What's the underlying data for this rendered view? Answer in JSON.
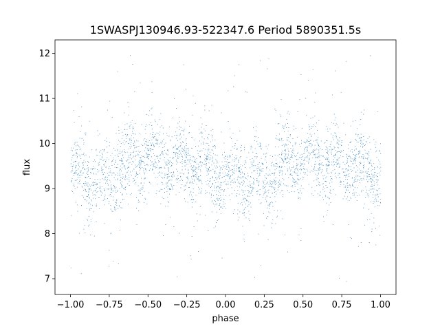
{
  "chart_data": {
    "type": "scatter",
    "title": "1SWASPJ130946.93-522347.6 Period 5890351.5s",
    "xlabel": "phase",
    "ylabel": "flux",
    "xlim": [
      -1.1,
      1.1
    ],
    "ylim": [
      6.65,
      12.3
    ],
    "xticks": [
      -1.0,
      -0.75,
      -0.5,
      -0.25,
      0.0,
      0.25,
      0.5,
      0.75,
      1.0
    ],
    "xtick_labels": [
      "−1.00",
      "−0.75",
      "−0.50",
      "−0.25",
      "0.00",
      "0.25",
      "0.50",
      "0.75",
      "1.00"
    ],
    "yticks": [
      7,
      8,
      9,
      10,
      11,
      12
    ],
    "ytick_labels": [
      "7",
      "8",
      "9",
      "10",
      "11",
      "12"
    ],
    "grid": false,
    "marker_color": "#1f77b4",
    "series": [
      {
        "x_range": [
          -1.0,
          1.0
        ],
        "profile": {
          "phase": [
            -1.0,
            -0.9,
            -0.8,
            -0.7,
            -0.6,
            -0.5,
            -0.4,
            -0.3,
            -0.2,
            -0.1,
            0.0,
            0.1,
            0.2,
            0.3,
            0.4,
            0.5,
            0.6,
            0.7,
            0.8,
            0.9,
            1.0
          ],
          "mean_flux": [
            9.3,
            9.2,
            9.1,
            9.4,
            9.6,
            9.7,
            9.6,
            9.5,
            9.6,
            9.4,
            9.2,
            9.3,
            9.1,
            9.3,
            9.6,
            9.7,
            9.6,
            9.5,
            9.6,
            9.4,
            9.3
          ]
        },
        "flux_min": 6.9,
        "flux_max": 12.1,
        "n_points": 14000
      }
    ]
  }
}
